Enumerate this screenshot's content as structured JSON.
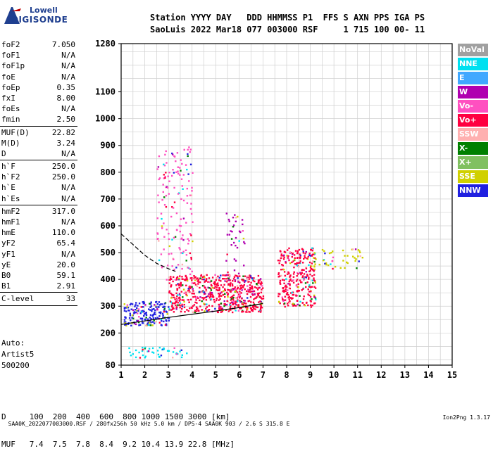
{
  "logo": {
    "line1": "Lowell",
    "line2": "DIGISONDE"
  },
  "header": {
    "line1": "Station YYYY DAY   DDD HHMMSS P1  FFS S AXN PPS IGA PS",
    "line2": "SaoLuis 2022 Mar18 077 003000 RSF     1 715 100 00- 11"
  },
  "params": [
    [
      {
        "k": "foF2",
        "v": "7.050"
      },
      {
        "k": "foF1",
        "v": "N/A"
      },
      {
        "k": "foF1p",
        "v": "N/A"
      },
      {
        "k": "foE",
        "v": "N/A"
      },
      {
        "k": "foEp",
        "v": "0.35"
      },
      {
        "k": "fxI",
        "v": "8.00"
      },
      {
        "k": "foEs",
        "v": "N/A"
      },
      {
        "k": "fmin",
        "v": "2.50"
      }
    ],
    [
      {
        "k": "MUF(D)",
        "v": "22.82"
      },
      {
        "k": "M(D)",
        "v": "3.24"
      },
      {
        "k": "D",
        "v": "N/A"
      }
    ],
    [
      {
        "k": "h`F",
        "v": "250.0"
      },
      {
        "k": "h`F2",
        "v": "250.0"
      },
      {
        "k": "h`E",
        "v": "N/A"
      },
      {
        "k": "h`Es",
        "v": "N/A"
      }
    ],
    [
      {
        "k": "hmF2",
        "v": "317.0"
      },
      {
        "k": "hmF1",
        "v": "N/A"
      },
      {
        "k": "hmE",
        "v": "110.0"
      },
      {
        "k": "yF2",
        "v": "65.4"
      },
      {
        "k": "yF1",
        "v": "N/A"
      },
      {
        "k": "yE",
        "v": "20.0"
      },
      {
        "k": "B0",
        "v": "59.1"
      },
      {
        "k": "B1",
        "v": "2.91"
      }
    ],
    [
      {
        "k": "C-level",
        "v": "33"
      }
    ]
  ],
  "auto": {
    "line1": "Auto:",
    "line2": "Artist5",
    "line3": "500200"
  },
  "legend": [
    {
      "label": "NoVal",
      "color": "#a0a0a0"
    },
    {
      "label": "NNE",
      "color": "#00e0f0"
    },
    {
      "label": "E",
      "color": "#40a8ff"
    },
    {
      "label": "W",
      "color": "#b000b0"
    },
    {
      "label": "Vo-",
      "color": "#ff50c0"
    },
    {
      "label": "Vo+",
      "color": "#ff0040"
    },
    {
      "label": "SSW",
      "color": "#ffb0b0"
    },
    {
      "label": "X-",
      "color": "#008000"
    },
    {
      "label": "X+",
      "color": "#80c060"
    },
    {
      "label": "SSE",
      "color": "#d0d000"
    },
    {
      "label": "NNW",
      "color": "#2020e0"
    }
  ],
  "bottom": {
    "line1": "D     100  200  400  600  800 1000 1500 3000 [km]",
    "line2": "MUF   7.4  7.5  7.8  8.4  9.2 10.4 13.9 22.8 [MHz]"
  },
  "footer": {
    "left": "SAA0K_2022077003000.RSF / 280fx256h 50 kHz 5.0 km / DPS-4 SAA0K 903 / 2.6 S 315.8 E",
    "right": "Ion2Png 1.3.17"
  },
  "chart_data": {
    "type": "scatter",
    "xlim": [
      1,
      15
    ],
    "ylim": [
      80,
      1280
    ],
    "x_ticks": [
      1,
      2,
      3,
      4,
      5,
      6,
      7,
      8,
      9,
      10,
      11,
      12,
      13,
      14,
      15
    ],
    "y_ticks": [
      80,
      200,
      300,
      400,
      500,
      600,
      700,
      800,
      900,
      1000,
      1100,
      1280
    ],
    "grid": true,
    "regions": [
      {
        "name": "NNW",
        "x": [
          1.1,
          3.0
        ],
        "y": [
          230,
          320
        ],
        "density": 0.75
      },
      {
        "name": "Vo+",
        "x": [
          3.0,
          7.0
        ],
        "y": [
          280,
          420
        ],
        "density": 0.8
      },
      {
        "name": "Vo+",
        "x": [
          7.6,
          9.2
        ],
        "y": [
          300,
          520
        ],
        "density": 0.6
      },
      {
        "name": "Vo-",
        "x": [
          2.5,
          4.0
        ],
        "y": [
          400,
          900
        ],
        "density": 0.15
      },
      {
        "name": "W",
        "x": [
          5.4,
          6.2
        ],
        "y": [
          300,
          650
        ],
        "density": 0.12
      },
      {
        "name": "NNE",
        "x": [
          1.1,
          3.8
        ],
        "y": [
          110,
          150
        ],
        "density": 0.3
      },
      {
        "name": "SSE",
        "x": [
          9.0,
          11.2
        ],
        "y": [
          440,
          520
        ],
        "density": 0.2
      }
    ],
    "trace_lower": {
      "x": [
        1.0,
        2.0,
        3.0,
        4.0,
        5.0,
        6.0,
        7.0
      ],
      "y": [
        232,
        245,
        258,
        270,
        282,
        295,
        310
      ]
    },
    "trace_upper": {
      "x": [
        1.0,
        1.5,
        2.0,
        2.5,
        3.0,
        3.3
      ],
      "y": [
        570,
        530,
        490,
        460,
        440,
        430
      ]
    }
  }
}
